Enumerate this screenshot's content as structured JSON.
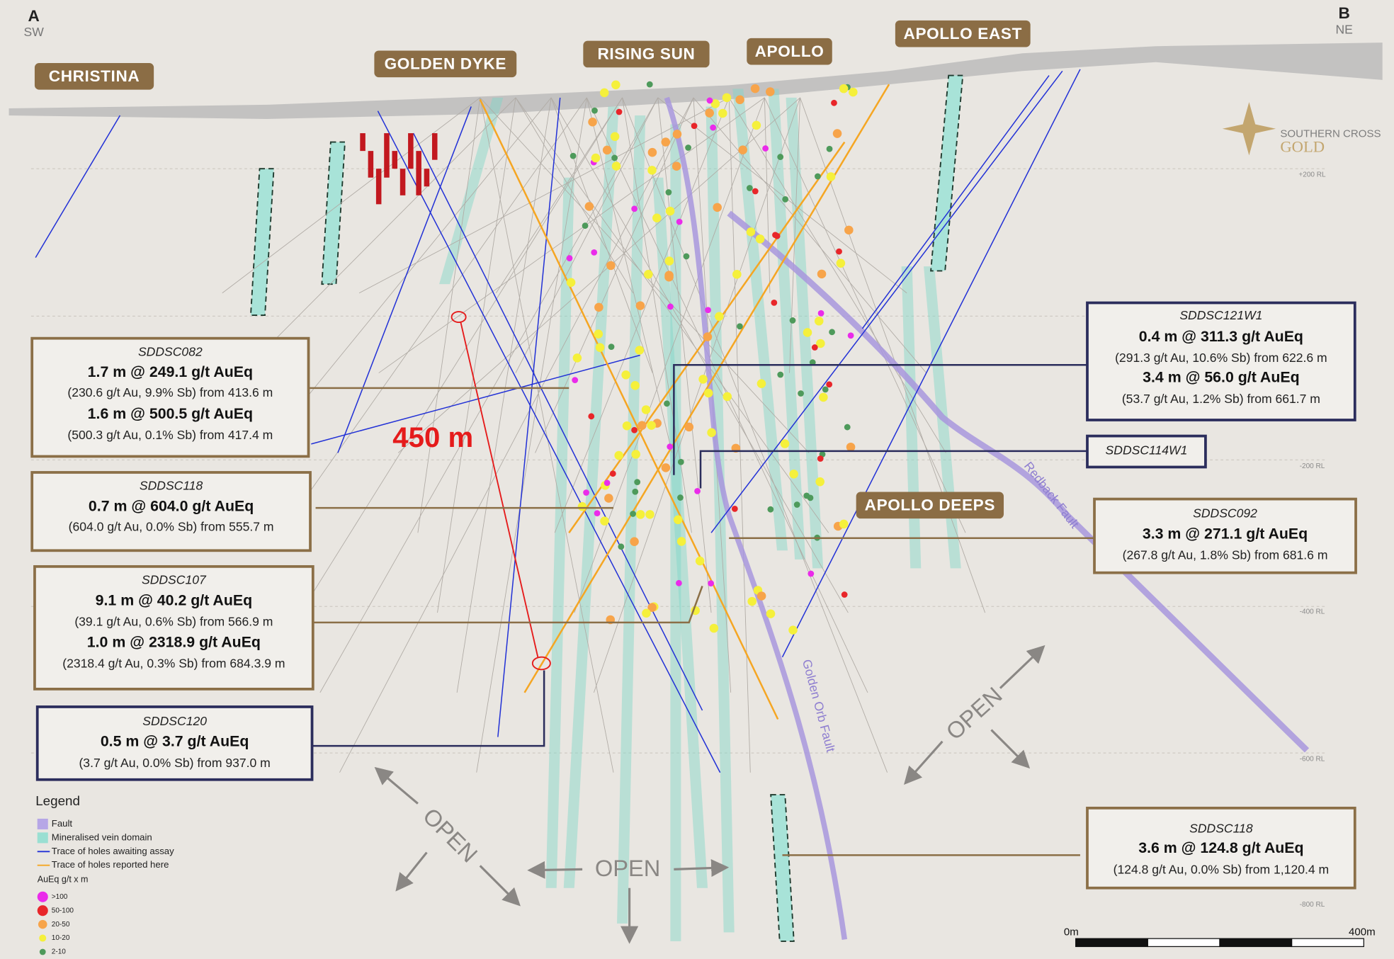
{
  "section": {
    "start": {
      "letter": "A",
      "direction": "SW"
    },
    "end": {
      "letter": "B",
      "direction": "NE"
    }
  },
  "prospects": [
    "CHRISTINA",
    "GOLDEN DYKE",
    "RISING SUN",
    "APOLLO",
    "APOLLO EAST",
    "APOLLO DEEPS"
  ],
  "logo": {
    "line1": "SOUTHERN CROSS",
    "line2": "GOLD"
  },
  "rl_labels": [
    "+200 RL",
    "-200 RL",
    "-400 RL",
    "-600 RL",
    "-800 RL"
  ],
  "callouts": [
    {
      "hole": "SDDSC082",
      "lines": [
        {
          "headline": "1.7 m @ 249.1 g/t AuEq",
          "detail": "(230.6 g/t Au, 9.9% Sb) from 413.6 m"
        },
        {
          "headline": "1.6 m @ 500.5 g/t AuEq",
          "detail": "(500.3 g/t Au, 0.1% Sb) from 417.4 m"
        }
      ]
    },
    {
      "hole": "SDDSC118",
      "lines": [
        {
          "headline": "0.7 m @ 604.0 g/t AuEq",
          "detail": "(604.0 g/t Au, 0.0% Sb) from 555.7 m"
        }
      ]
    },
    {
      "hole": "SDDSC107",
      "lines": [
        {
          "headline": "9.1 m @ 40.2 g/t AuEq",
          "detail": "(39.1 g/t Au, 0.6% Sb) from 566.9 m"
        },
        {
          "headline": "1.0 m @ 2318.9 g/t AuEq",
          "detail": "(2318.4 g/t Au, 0.3% Sb) from 684.3.9 m"
        }
      ]
    },
    {
      "hole": "SDDSC120",
      "lines": [
        {
          "headline": "0.5 m @ 3.7 g/t AuEq",
          "detail": "(3.7 g/t Au, 0.0% Sb) from 937.0 m"
        }
      ]
    },
    {
      "hole": "SDDSC121W1",
      "lines": [
        {
          "headline": "0.4 m @ 311.3 g/t AuEq",
          "detail": "(291.3 g/t Au, 10.6% Sb) from 622.6 m"
        },
        {
          "headline": "3.4 m @ 56.0 g/t AuEq",
          "detail": "(53.7 g/t Au, 1.2% Sb) from 661.7 m"
        }
      ]
    },
    {
      "hole": "SDDSC114W1",
      "lines": []
    },
    {
      "hole": "SDDSC092",
      "lines": [
        {
          "headline": "3.3 m @ 271.1 g/t AuEq",
          "detail": "(267.8 g/t Au, 1.8% Sb) from 681.6 m"
        }
      ]
    },
    {
      "hole": "SDDSC118",
      "lines": [
        {
          "headline": "3.6 m @ 124.8 g/t AuEq",
          "detail": "(124.8 g/t Au, 0.0% Sb) from 1,120.4 m"
        }
      ]
    }
  ],
  "distance_label": "450 m",
  "faults": [
    "Redback Fault",
    "Golden Orb Fault"
  ],
  "open_labels": [
    "OPEN",
    "OPEN",
    "OPEN"
  ],
  "legend": {
    "title": "Legend",
    "items": [
      "Fault",
      "Mineralised vein domain",
      "Trace of holes awaiting assay",
      "Trace of holes reported here"
    ],
    "grade_title": "AuEq g/t x m",
    "grades": [
      ">100",
      "50-100",
      "20-50",
      "10-20",
      "2-10"
    ]
  },
  "scale_bar": {
    "start": "0m",
    "end": "400m"
  }
}
